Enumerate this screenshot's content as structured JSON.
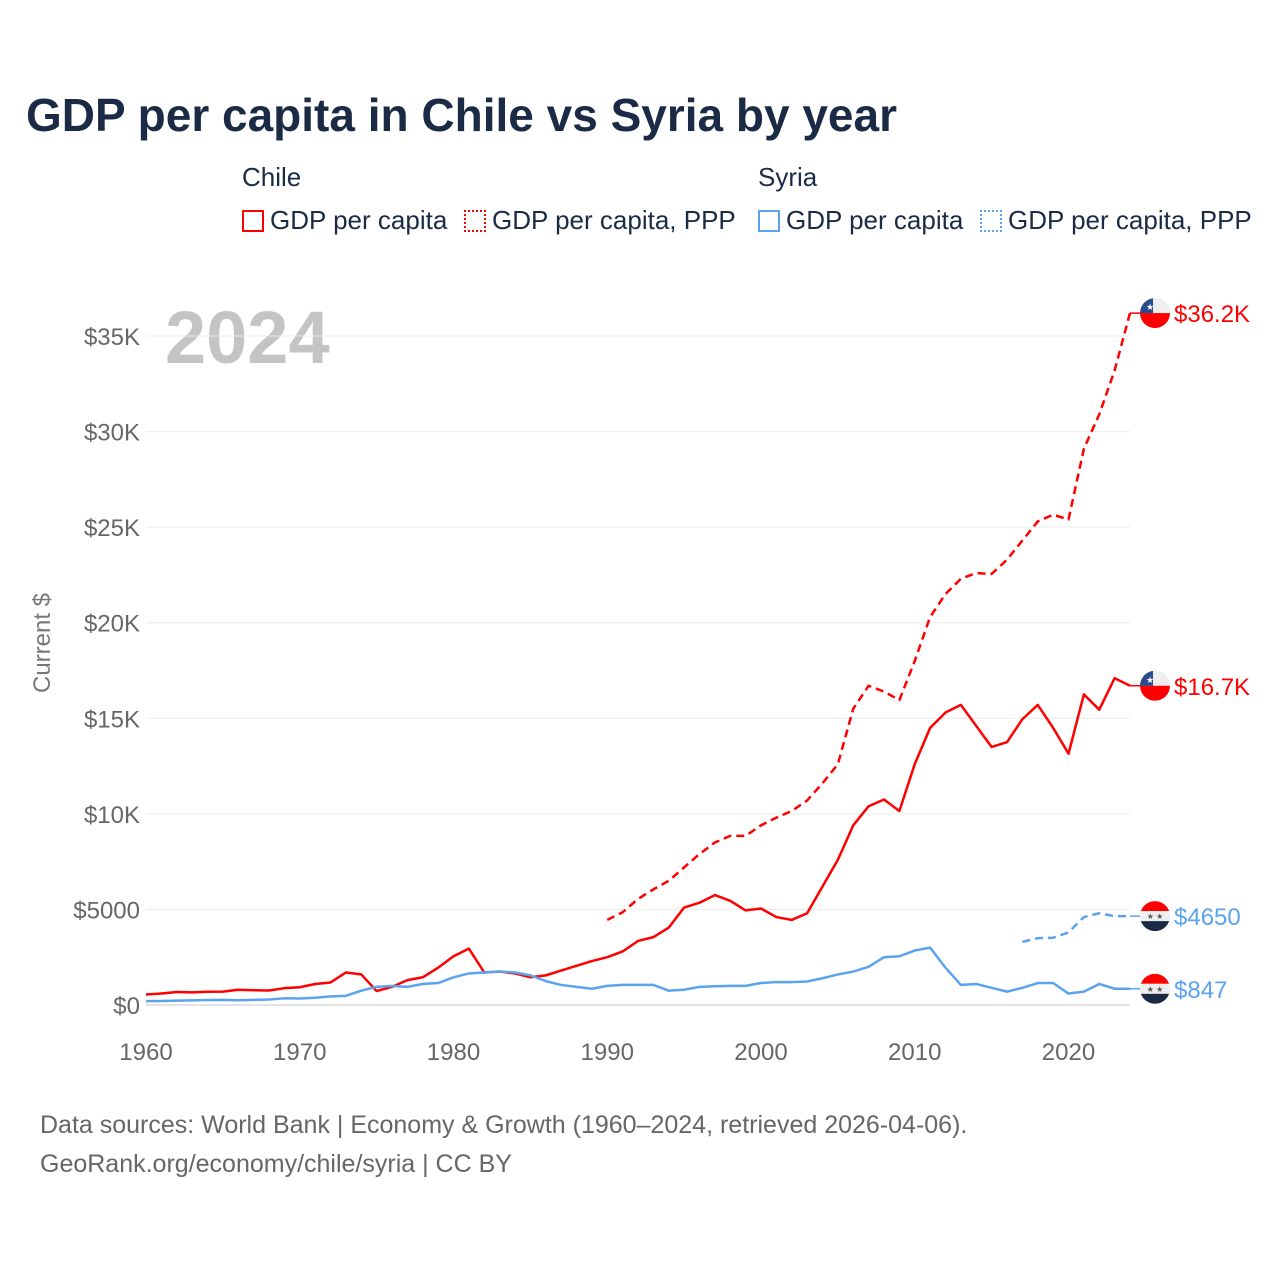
{
  "title": "GDP per capita in Chile vs Syria by year",
  "legend": {
    "groups": [
      {
        "name": "Chile",
        "color": "#ff0000",
        "items": [
          "GDP per capita",
          "GDP per capita, PPP"
        ]
      },
      {
        "name": "Syria",
        "color": "#5ba3ef",
        "items": [
          "GDP per capita",
          "GDP per capita, PPP"
        ]
      }
    ]
  },
  "year_label": "2024",
  "source_lines": [
    "Data sources: World Bank | Economy & Growth (1960–2024, retrieved 2026-04-06).",
    "GeoRank.org/economy/chile/syria | CC BY"
  ],
  "chart_data": {
    "type": "line",
    "title": "GDP per capita in Chile vs Syria by year",
    "ylabel": "Current $",
    "xlim": [
      1960,
      2024
    ],
    "ylim": [
      0,
      37000
    ],
    "xticks": [
      1960,
      1970,
      1980,
      1990,
      2000,
      2010,
      2020
    ],
    "yticks": [
      0,
      5000,
      10000,
      15000,
      20000,
      25000,
      30000,
      35000
    ],
    "ytick_labels": [
      "$0",
      "$5000",
      "$10K",
      "$15K",
      "$20K",
      "$25K",
      "$30K",
      "$35K"
    ],
    "grid": true,
    "series": [
      {
        "name": "Chile GDP per capita",
        "color": "#ff0000",
        "dash": false,
        "start": 1960,
        "end_label": "$16.7K",
        "values": [
          550,
          600,
          680,
          660,
          690,
          700,
          800,
          770,
          760,
          880,
          930,
          1100,
          1180,
          1700,
          1600,
          730,
          950,
          1300,
          1450,
          1950,
          2550,
          2950,
          1700,
          1750,
          1650,
          1450,
          1550,
          1800,
          2050,
          2300,
          2500,
          2800,
          3350,
          3550,
          4050,
          5100,
          5350,
          5750,
          5450,
          4950,
          5050,
          4600,
          4450,
          4800,
          6200,
          7600,
          9400,
          10400,
          10750,
          10150,
          12600,
          14500,
          15300,
          15700,
          14600,
          13500,
          13750,
          14950,
          15700,
          14500,
          13150,
          16250,
          15450,
          17100,
          16700
        ]
      },
      {
        "name": "Chile GDP per capita, PPP",
        "color": "#ff0000",
        "dash": true,
        "start": 1990,
        "end_label": "$36.2K",
        "values": [
          4450,
          4850,
          5550,
          6050,
          6500,
          7200,
          7900,
          8500,
          8850,
          8850,
          9400,
          9800,
          10150,
          10700,
          11600,
          12600,
          15500,
          16700,
          16400,
          15950,
          18000,
          20300,
          21500,
          22300,
          22600,
          22550,
          23300,
          24300,
          25300,
          25650,
          25400,
          29100,
          30900,
          33200,
          36200
        ]
      },
      {
        "name": "Syria GDP per capita",
        "color": "#5ba3ef",
        "dash": false,
        "start": 1960,
        "end_label": "$847",
        "values": [
          200,
          210,
          230,
          240,
          260,
          270,
          250,
          270,
          290,
          350,
          340,
          380,
          450,
          480,
          750,
          950,
          1000,
          950,
          1100,
          1150,
          1450,
          1650,
          1700,
          1750,
          1700,
          1550,
          1250,
          1050,
          950,
          850,
          1000,
          1050,
          1050,
          1050,
          750,
          800,
          950,
          980,
          1000,
          1000,
          1150,
          1200,
          1200,
          1230,
          1400,
          1600,
          1750,
          2000,
          2500,
          2550,
          2850,
          3000,
          1950,
          1050,
          1100,
          900,
          700,
          900,
          1150,
          1150,
          600,
          700,
          1100,
          850,
          847
        ]
      },
      {
        "name": "Syria GDP per capita, PPP",
        "color": "#5ba3ef",
        "dash": true,
        "start": 2017,
        "end_label": "$4650",
        "values": [
          3300,
          3500,
          3520,
          3800,
          4600,
          4800,
          4650,
          4650
        ]
      }
    ]
  }
}
